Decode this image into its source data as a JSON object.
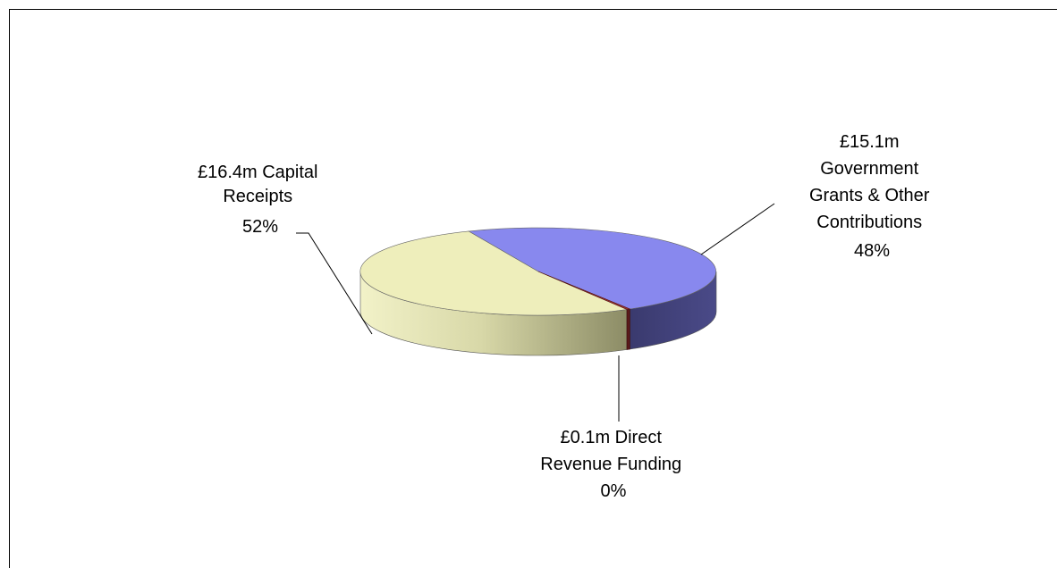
{
  "chart_data": {
    "type": "pie",
    "style": "3d",
    "title": "",
    "unit": "£m",
    "slices": [
      {
        "name": "Capital Receipts",
        "value": 16.4,
        "percent": 52,
        "color": "#eeeebb",
        "label_lines": [
          "£16.4m Capital",
          "Receipts",
          "52%"
        ]
      },
      {
        "name": "Government Grants & Other Contributions",
        "value": 15.1,
        "percent": 48,
        "color": "#8888ee",
        "label_lines": [
          "£15.1m",
          "Government",
          "Grants & Other",
          "Contributions",
          "48%"
        ]
      },
      {
        "name": "Direct Revenue Funding",
        "value": 0.1,
        "percent": 0,
        "color": "#993333",
        "label_lines": [
          "£0.1m Direct",
          "Revenue Funding",
          "0%"
        ]
      }
    ]
  }
}
